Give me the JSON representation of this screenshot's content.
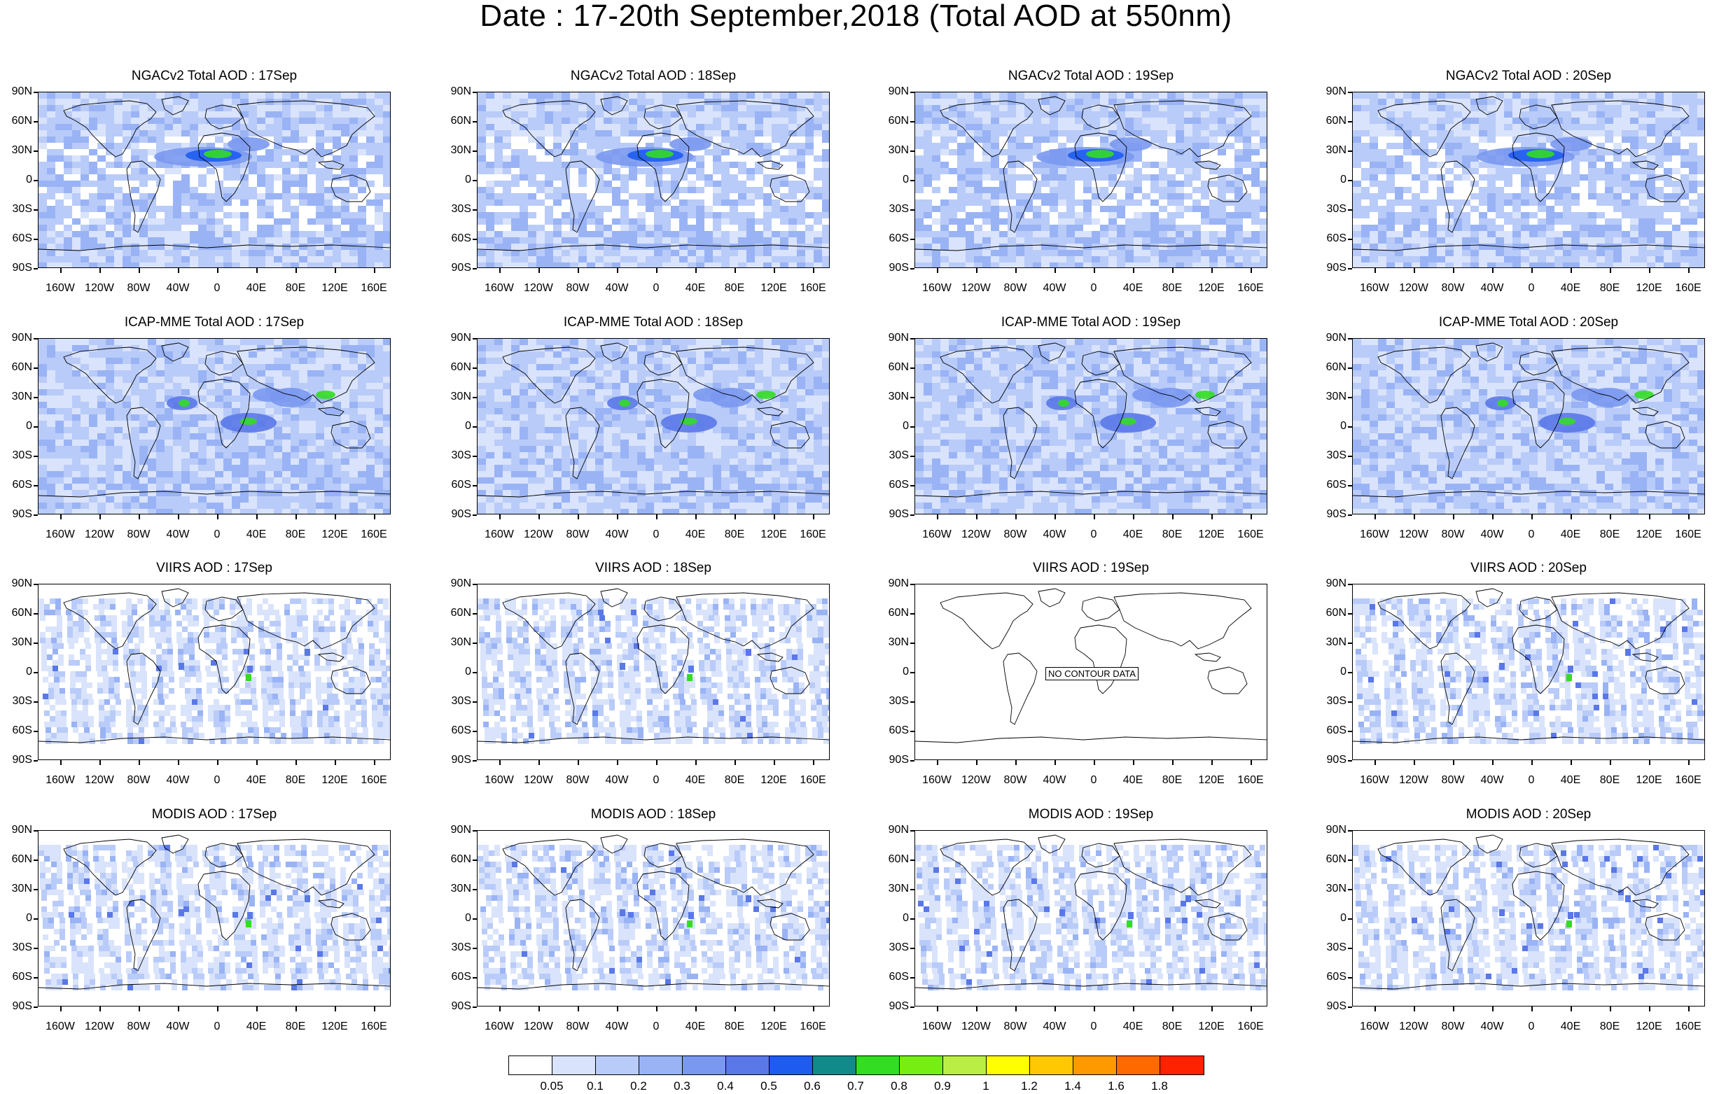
{
  "title": "Date : 17-20th September,2018 (Total AOD at 550nm)",
  "lat_labels": [
    "90N",
    "60N",
    "30N",
    "0",
    "30S",
    "60S",
    "90S"
  ],
  "lon_labels": [
    "160W",
    "120W",
    "80W",
    "40W",
    "0",
    "40E",
    "80E",
    "120E",
    "160E"
  ],
  "rows": [
    {
      "product": "NGACv2",
      "style": "model",
      "panels": [
        {
          "title": "NGACv2 Total AOD : 17Sep"
        },
        {
          "title": "NGACv2 Total AOD : 18Sep"
        },
        {
          "title": "NGACv2 Total AOD : 19Sep"
        },
        {
          "title": "NGACv2 Total AOD : 20Sep"
        }
      ]
    },
    {
      "product": "ICAP-MME",
      "style": "model",
      "panels": [
        {
          "title": "ICAP-MME Total AOD : 17Sep"
        },
        {
          "title": "ICAP-MME Total AOD : 18Sep"
        },
        {
          "title": "ICAP-MME Total AOD : 19Sep"
        },
        {
          "title": "ICAP-MME Total AOD : 20Sep"
        }
      ]
    },
    {
      "product": "VIIRS",
      "style": "satellite",
      "panels": [
        {
          "title": "VIIRS AOD : 17Sep"
        },
        {
          "title": "VIIRS AOD : 18Sep"
        },
        {
          "title": "VIIRS AOD : 19Sep",
          "nodata": "NO CONTOUR DATA"
        },
        {
          "title": "VIIRS AOD : 20Sep"
        }
      ]
    },
    {
      "product": "MODIS",
      "style": "satellite",
      "panels": [
        {
          "title": "MODIS AOD : 17Sep"
        },
        {
          "title": "MODIS AOD : 18Sep"
        },
        {
          "title": "MODIS AOD : 19Sep"
        },
        {
          "title": "MODIS AOD : 20Sep"
        }
      ]
    }
  ],
  "colorbar": {
    "labels": [
      "0.05",
      "0.1",
      "0.2",
      "0.3",
      "0.4",
      "0.5",
      "0.6",
      "0.7",
      "0.8",
      "0.9",
      "1",
      "1.2",
      "1.4",
      "1.6",
      "1.8"
    ],
    "colors": [
      "#ffffff",
      "#d9e3fb",
      "#b9cbf8",
      "#99b3f5",
      "#7a98f0",
      "#5a78e8",
      "#1e5cf0",
      "#118a8a",
      "#33dd22",
      "#77ee11",
      "#bbee44",
      "#ffff00",
      "#ffc800",
      "#ff9900",
      "#ff6a00",
      "#ff2200"
    ]
  }
}
